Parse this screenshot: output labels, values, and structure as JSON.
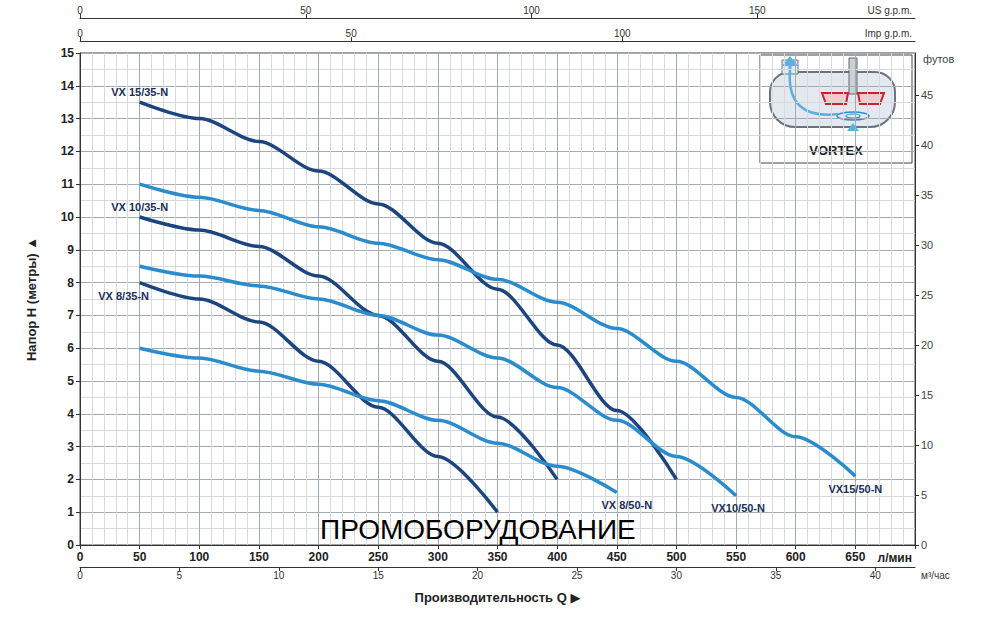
{
  "chart_data": {
    "type": "line",
    "xlabel": "Производительность Q ▶",
    "ylabel": "Напор H (метры) ▲",
    "xunit": "л/мин",
    "xlim": [
      0,
      700
    ],
    "xticks": [
      0,
      50,
      100,
      150,
      200,
      250,
      300,
      350,
      400,
      450,
      500,
      550,
      600,
      650
    ],
    "ylim": [
      0,
      15
    ],
    "yticks": [
      0,
      1,
      2,
      3,
      4,
      5,
      6,
      7,
      8,
      9,
      10,
      11,
      12,
      13,
      14,
      15
    ],
    "y2label": "футов",
    "y2lim": [
      0,
      49.21
    ],
    "y2ticks": [
      0,
      5,
      10,
      15,
      20,
      25,
      30,
      35,
      40,
      45
    ],
    "top_axes": [
      {
        "label": "US g.p.m.",
        "lim": [
          0,
          184.92
        ],
        "ticks": [
          0,
          50,
          100,
          150
        ]
      },
      {
        "label": "Imp g.p.m.",
        "lim": [
          0,
          153.98
        ],
        "ticks": [
          0,
          50,
          100
        ]
      }
    ],
    "bottom_axes": [
      {
        "label": "м³/час",
        "lim": [
          0,
          42
        ],
        "ticks": [
          0,
          5,
          10,
          15,
          20,
          25,
          30,
          35,
          40
        ]
      }
    ],
    "grid": true,
    "series": [
      {
        "name": "VX 15/35-N",
        "color": "#1c4580",
        "x": [
          50,
          100,
          150,
          200,
          250,
          300,
          350,
          400,
          450,
          500
        ],
        "values": [
          13.5,
          13.0,
          12.3,
          11.4,
          10.4,
          9.2,
          7.8,
          6.1,
          4.1,
          2.0
        ]
      },
      {
        "name": "VX 10/35-N",
        "color": "#1c4580",
        "x": [
          50,
          100,
          150,
          200,
          250,
          300,
          350,
          400
        ],
        "values": [
          10.0,
          9.6,
          9.1,
          8.2,
          7.0,
          5.6,
          3.9,
          2.0
        ]
      },
      {
        "name": "VX 8/35-N",
        "color": "#1c4580",
        "x": [
          50,
          100,
          150,
          200,
          250,
          300,
          350
        ],
        "values": [
          8.0,
          7.5,
          6.8,
          5.6,
          4.2,
          2.7,
          1.0
        ]
      },
      {
        "name": "VX 8/50-N",
        "color": "#2a8ccd",
        "x": [
          50,
          100,
          150,
          200,
          250,
          300,
          350,
          400,
          450
        ],
        "values": [
          6.0,
          5.7,
          5.3,
          4.9,
          4.4,
          3.8,
          3.1,
          2.4,
          1.6
        ]
      },
      {
        "name": "VX10/50-N",
        "color": "#2a8ccd",
        "x": [
          50,
          100,
          150,
          200,
          250,
          300,
          350,
          400,
          450,
          500,
          550
        ],
        "values": [
          8.5,
          8.2,
          7.9,
          7.5,
          7.0,
          6.4,
          5.7,
          4.8,
          3.8,
          2.7,
          1.5
        ]
      },
      {
        "name": "VX15/50-N",
        "color": "#2a8ccd",
        "x": [
          50,
          100,
          150,
          200,
          250,
          300,
          350,
          400,
          450,
          500,
          550,
          600,
          650
        ],
        "values": [
          11.0,
          10.6,
          10.2,
          9.7,
          9.2,
          8.7,
          8.1,
          7.4,
          6.6,
          5.6,
          4.5,
          3.3,
          2.1
        ]
      }
    ],
    "annotations": [
      {
        "text": "VORTEX"
      },
      {
        "text": "ПРОМОБОРУДОВАНИЕ"
      }
    ]
  }
}
